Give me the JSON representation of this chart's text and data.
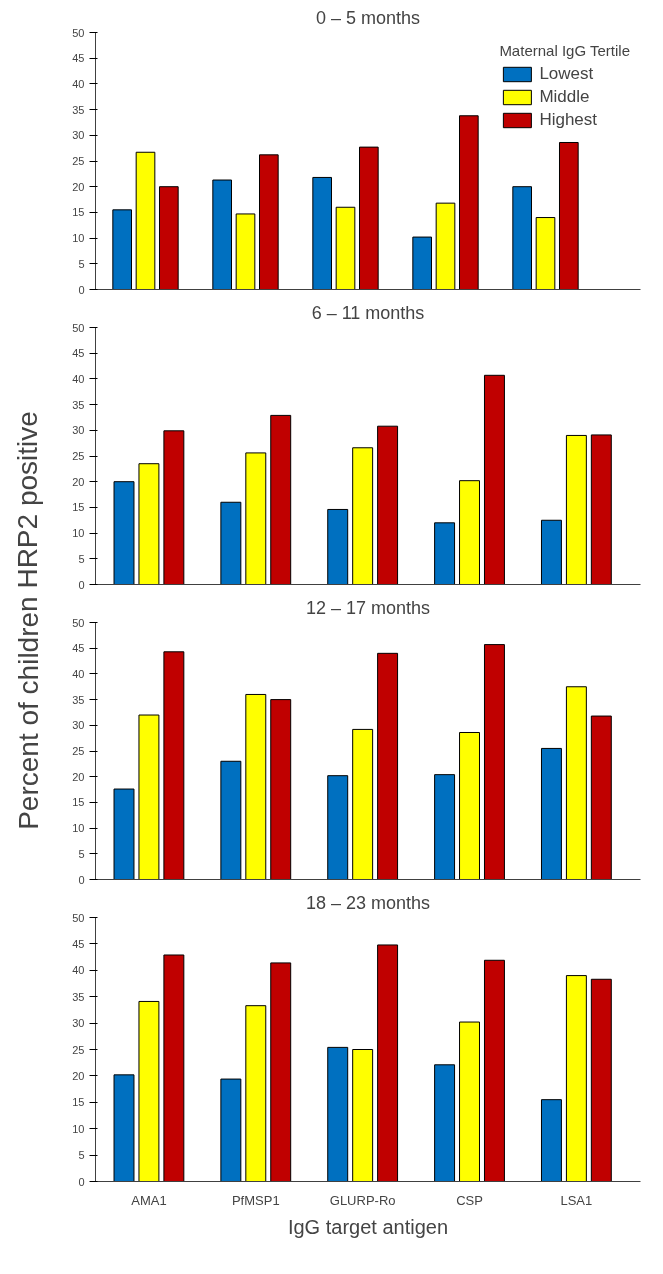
{
  "chart_data": [
    {
      "type": "bar",
      "title": "0 – 5 months",
      "ylabel": "Percent of children HRP2 positive",
      "legend_title": "Maternal IgG Tertile",
      "legend": "top right",
      "tick_labels": "y",
      "categories": [
        null,
        null,
        null,
        null,
        null
      ],
      "ylim": [
        0,
        50
      ],
      "yticks": [
        0,
        5,
        10,
        15,
        20,
        25,
        30,
        35,
        40,
        45,
        50
      ],
      "series": [
        {
          "name": "Lowest",
          "color": "#0070c0",
          "values": [
            15.5,
            21.3,
            21.8,
            10.2,
            20.0
          ]
        },
        {
          "name": "Middle",
          "color": "#ffff00",
          "values": [
            26.7,
            14.7,
            16.0,
            16.8,
            14.0
          ]
        },
        {
          "name": "Highest",
          "color": "#c00000",
          "values": [
            20.0,
            26.2,
            27.7,
            33.8,
            28.6
          ]
        }
      ]
    },
    {
      "type": "bar",
      "title": "6 – 11 months",
      "tick_labels": "y",
      "categories": [
        null,
        null,
        null,
        null,
        null
      ],
      "ylim": [
        0,
        50
      ],
      "yticks": [
        0,
        5,
        10,
        15,
        20,
        25,
        30,
        35,
        40,
        45,
        50
      ],
      "series": [
        {
          "color": "#0070c0",
          "values": [
            20.0,
            16.0,
            14.6,
            12.0,
            12.5
          ]
        },
        {
          "color": "#ffff00",
          "values": [
            23.5,
            25.6,
            26.6,
            20.2,
            29.0
          ]
        },
        {
          "color": "#c00000",
          "values": [
            29.9,
            32.9,
            30.8,
            40.7,
            29.1
          ]
        }
      ]
    },
    {
      "type": "bar",
      "title": "12 – 17 months",
      "tick_labels": "y",
      "categories": [
        null,
        null,
        null,
        null,
        null
      ],
      "ylim": [
        0,
        50
      ],
      "yticks": [
        0,
        5,
        10,
        15,
        20,
        25,
        30,
        35,
        40,
        45,
        50
      ],
      "series": [
        {
          "color": "#0070c0",
          "values": [
            17.6,
            23.0,
            20.2,
            20.4,
            25.5
          ]
        },
        {
          "color": "#ffff00",
          "values": [
            32.0,
            36.0,
            29.2,
            28.6,
            37.5
          ]
        },
        {
          "color": "#c00000",
          "values": [
            44.3,
            35.0,
            44.0,
            45.7,
            31.8
          ]
        }
      ]
    },
    {
      "type": "bar",
      "title": "18 – 23 months",
      "xlabel": "IgG target antigen",
      "categories": [
        "AMA1",
        "PfMSP1",
        "GLURP-Ro",
        "CSP",
        "LSA1"
      ],
      "ylim": [
        0,
        50
      ],
      "yticks": [
        0,
        5,
        10,
        15,
        20,
        25,
        30,
        35,
        40,
        45,
        50
      ],
      "series": [
        {
          "color": "#0070c0",
          "values": [
            20.2,
            19.4,
            25.4,
            22.1,
            15.5
          ]
        },
        {
          "color": "#ffff00",
          "values": [
            34.1,
            33.3,
            25.0,
            30.2,
            39.0
          ]
        },
        {
          "color": "#c00000",
          "values": [
            42.9,
            41.4,
            44.8,
            41.9,
            38.3
          ]
        }
      ]
    }
  ]
}
